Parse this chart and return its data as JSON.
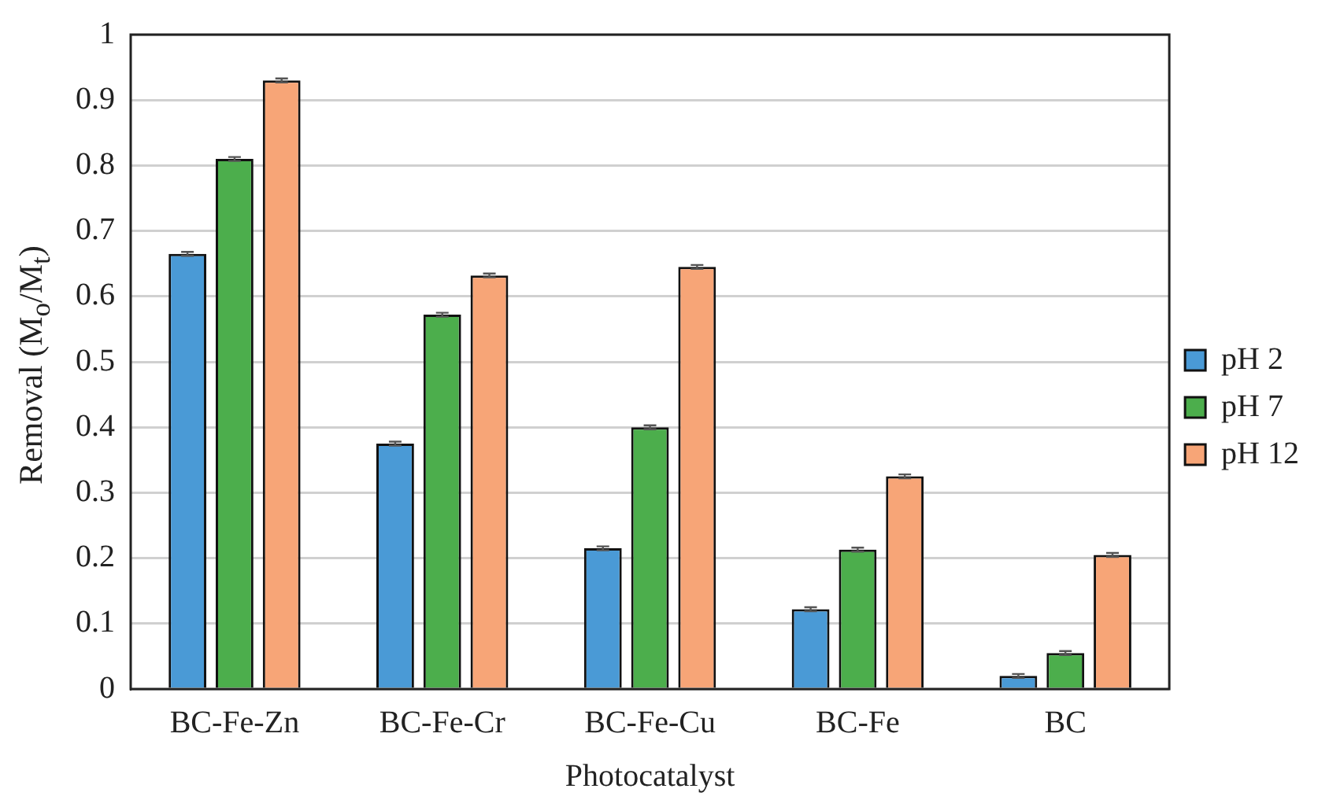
{
  "chart_data": {
    "type": "bar",
    "xlabel": "Photocatalyst",
    "ylabel": "Removal (M$_{o}$/M$_{t}$)",
    "categories": [
      "BC-Fe-Zn",
      "BC-Fe-Cr",
      "BC-Fe-Cu",
      "BC-Fe",
      "BC"
    ],
    "series": [
      {
        "name": "pH 2",
        "color": "#4a9ad6",
        "values": [
          0.665,
          0.375,
          0.215,
          0.122,
          0.02
        ],
        "errors": [
          0.003,
          0.003,
          0.003,
          0.003,
          0.003
        ]
      },
      {
        "name": "pH 7",
        "color": "#4cae4c",
        "values": [
          0.81,
          0.572,
          0.4,
          0.213,
          0.055
        ],
        "errors": [
          0.003,
          0.003,
          0.003,
          0.003,
          0.003
        ]
      },
      {
        "name": "pH 12",
        "color": "#f7a577",
        "values": [
          0.93,
          0.632,
          0.645,
          0.325,
          0.205
        ],
        "errors": [
          0.003,
          0.003,
          0.003,
          0.003,
          0.003
        ]
      }
    ],
    "ylim": [
      0,
      1
    ],
    "yticks": [
      0,
      0.1,
      0.2,
      0.3,
      0.4,
      0.5,
      0.6,
      0.7,
      0.8,
      0.9,
      1
    ],
    "grid": "y",
    "legend": "right"
  }
}
